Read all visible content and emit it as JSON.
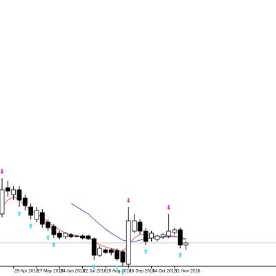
{
  "chart_data": {
    "type": "candlestick",
    "categories": [
      null,
      null,
      "29 Apr 2018",
      null,
      null,
      null,
      "27 May 2018",
      null,
      null,
      null,
      "24 Jun 2018",
      null,
      null,
      null,
      "22 Jul 2018",
      null,
      null,
      null,
      "19 Aug 2018",
      null,
      null,
      null,
      "16 Sep 2018",
      null,
      null,
      null,
      "14 Oct 2018",
      null,
      null,
      null,
      "11 Nov 2018",
      null,
      null
    ],
    "open": [
      90,
      128,
      118,
      125,
      113,
      100,
      82,
      92,
      78,
      72,
      62,
      57,
      60,
      58,
      58,
      58,
      54,
      30,
      38,
      38,
      37,
      35,
      17,
      65,
      78,
      65,
      55,
      53,
      57,
      58,
      63,
      67,
      45
    ],
    "high": [
      142,
      138,
      130,
      130,
      118,
      105,
      100,
      97,
      82,
      75,
      65,
      64,
      62,
      60,
      60,
      60,
      56,
      43,
      40,
      40,
      40,
      38,
      100,
      90,
      82,
      70,
      65,
      60,
      62,
      90,
      70,
      70,
      50
    ],
    "low": [
      85,
      115,
      110,
      100,
      95,
      82,
      78,
      70,
      65,
      55,
      53,
      54,
      55,
      56,
      53,
      52,
      23,
      28,
      32,
      30,
      22,
      15,
      14,
      62,
      60,
      45,
      50,
      50,
      54,
      55,
      60,
      40,
      38
    ],
    "close": [
      125,
      123,
      125,
      110,
      102,
      88,
      95,
      75,
      70,
      60,
      56,
      62,
      57,
      58,
      55,
      54,
      30,
      40,
      34,
      34,
      25,
      20,
      80,
      80,
      65,
      50,
      62,
      58,
      60,
      65,
      67,
      45,
      48
    ],
    "ylim": [
      0,
      400
    ],
    "up_color": "#ffffff",
    "down_color": "#000000",
    "lines": [
      {
        "color": "#e03030",
        "values": [
          100,
          110,
          115,
          110,
          102,
          95,
          90,
          85,
          78,
          72,
          67,
          62,
          60,
          58,
          57,
          56,
          50,
          45,
          42,
          40,
          38,
          35,
          45,
          55,
          60,
          60,
          58,
          57,
          57,
          58,
          58,
          55,
          52
        ]
      },
      {
        "color": "#2a3a9a",
        "values": [
          null,
          null,
          null,
          null,
          null,
          null,
          null,
          null,
          null,
          null,
          null,
          null,
          105,
          100,
          95,
          90,
          82,
          75,
          68,
          62,
          57,
          52,
          50,
          50,
          52,
          54,
          55,
          55,
          56,
          57,
          57,
          56,
          54
        ]
      }
    ],
    "up_fractals": [
      3,
      5,
      8,
      9,
      16,
      20,
      21,
      25,
      31
    ],
    "up_fractal_color": "#48d8e0",
    "down_fractals": [
      0,
      22,
      29
    ],
    "down_fractal_color": "#c040c0",
    "hline": 48
  }
}
